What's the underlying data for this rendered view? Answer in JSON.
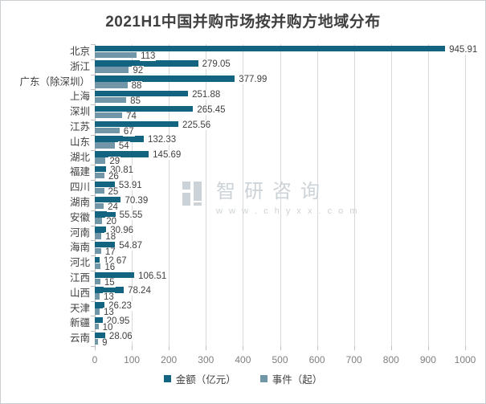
{
  "chart_data": {
    "type": "bar",
    "orientation": "horizontal",
    "title": "2021H1中国并购市场按并购方地域分布",
    "categories": [
      "北京",
      "浙江",
      "广东（除深圳）",
      "上海",
      "深圳",
      "江苏",
      "山东",
      "湖北",
      "福建",
      "四川",
      "湖南",
      "安徽",
      "河南",
      "海南",
      "河北",
      "江西",
      "山西",
      "天津",
      "新疆",
      "云南"
    ],
    "series": [
      {
        "name": "金额（亿元）",
        "color": "#136480",
        "values": [
          945.91,
          279.05,
          377.99,
          251.88,
          265.45,
          225.56,
          132.33,
          145.69,
          30.81,
          53.91,
          70.39,
          55.55,
          30.96,
          54.87,
          12.67,
          106.51,
          78.24,
          26.23,
          20.95,
          28.06
        ],
        "decimals": 2
      },
      {
        "name": "事件（起）",
        "color": "#7196a8",
        "values": [
          113,
          92,
          88,
          85,
          74,
          67,
          54,
          29,
          26,
          25,
          24,
          20,
          18,
          17,
          16,
          15,
          13,
          13,
          10,
          9
        ],
        "decimals": 0
      }
    ],
    "x_axis": {
      "min": 0,
      "max": 1000,
      "step": 100,
      "tick_labels": [
        "0",
        "100",
        "200",
        "300",
        "400",
        "500",
        "600",
        "700",
        "800",
        "900",
        "1000"
      ]
    },
    "grid": true,
    "legend_position": "bottom"
  },
  "watermark": {
    "brand": "智研咨询",
    "url": "w w w . c h y x x . c o m"
  },
  "colors": {
    "bar_amount": "#136480",
    "bar_events": "#7196a8",
    "gridline": "#d9d9d9",
    "axis_line": "#bfbfbf",
    "label_text": "#404040",
    "axis_tick_text": "#7f7f7f",
    "title_text": "#404040",
    "watermark_gray": "#ccd3d8"
  }
}
